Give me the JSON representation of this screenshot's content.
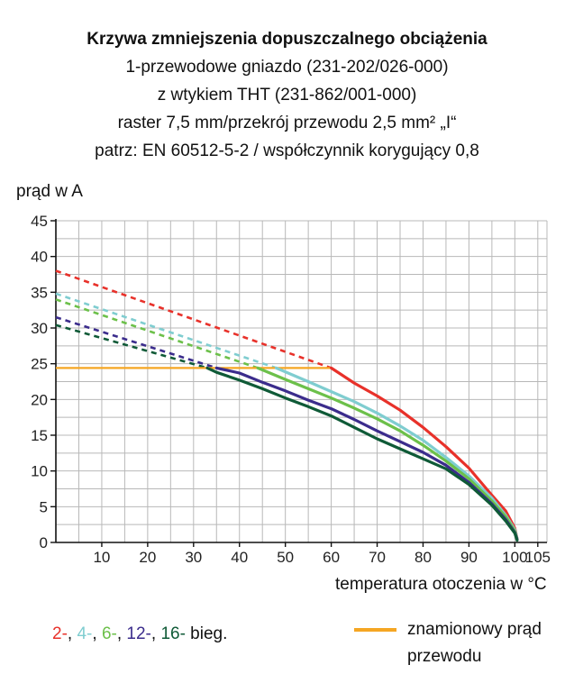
{
  "chart_data": {
    "type": "line",
    "title": "Krzywa zmniejszenia dopuszczalnego obciążenia",
    "subtitle_lines": [
      "1-przewodowe gniazdo (231-202/026-000)",
      "z wtykiem THT (231-862/001-000)",
      "raster 7,5 mm/przekrój przewodu 2,5 mm² „I“",
      "patrz: EN 60512-5-2 / współczynnik korygujący 0,8"
    ],
    "ylabel": "prąd w A",
    "xlabel": "temperatura otoczenia w °C",
    "xlim": [
      0,
      107
    ],
    "ylim": [
      0,
      45
    ],
    "x_ticks": [
      10,
      20,
      30,
      40,
      50,
      60,
      70,
      80,
      90,
      100,
      105
    ],
    "x_tick_labels": [
      "10",
      "20",
      "30",
      "40",
      "50",
      "60",
      "70",
      "80",
      "90",
      "100",
      "105"
    ],
    "y_ticks": [
      0,
      5,
      10,
      15,
      20,
      25,
      30,
      35,
      40,
      45
    ],
    "y_tick_labels": [
      "0",
      "5",
      "10",
      "15",
      "20",
      "25",
      "30",
      "35",
      "40",
      "45"
    ],
    "grid": true,
    "legend_words": [
      "2-",
      "4-",
      "6-",
      "12-",
      "16-"
    ],
    "legend_suffix": " bieg.",
    "legend_separator": ", ",
    "rated_label_lines": [
      "znamionowy prąd",
      "przewodu"
    ],
    "rated_current": 24.4,
    "series": [
      {
        "name": "2-",
        "color": "#e8312a",
        "dashed": {
          "x": [
            0,
            60
          ],
          "y": [
            38.0,
            24.4
          ]
        },
        "solid": {
          "x": [
            60,
            65,
            70,
            75,
            80,
            85,
            90,
            95,
            98,
            100,
            100.5
          ],
          "y": [
            24.4,
            22.3,
            20.5,
            18.5,
            16.1,
            13.4,
            10.4,
            6.6,
            4.4,
            2.0,
            0.5
          ]
        }
      },
      {
        "name": "4-",
        "color": "#7fcdd0",
        "dashed": {
          "x": [
            0,
            48
          ],
          "y": [
            34.8,
            24.4
          ]
        },
        "solid": {
          "x": [
            48,
            55,
            60,
            65,
            70,
            75,
            80,
            85,
            90,
            95,
            98,
            100,
            100.5
          ],
          "y": [
            24.4,
            22.5,
            21.1,
            19.7,
            18.1,
            16.3,
            14.3,
            11.9,
            9.3,
            6.2,
            3.8,
            1.8,
            0.5
          ]
        }
      },
      {
        "name": "6-",
        "color": "#6cc04a",
        "dashed": {
          "x": [
            0,
            44
          ],
          "y": [
            34.0,
            24.4
          ]
        },
        "solid": {
          "x": [
            44,
            50,
            55,
            60,
            65,
            70,
            75,
            80,
            85,
            90,
            95,
            98,
            100,
            100.5
          ],
          "y": [
            24.4,
            22.8,
            21.5,
            20.2,
            18.8,
            17.3,
            15.6,
            13.6,
            11.4,
            8.9,
            5.8,
            3.6,
            1.6,
            0.4
          ]
        }
      },
      {
        "name": "12-",
        "color": "#3b2c8c",
        "dashed": {
          "x": [
            0,
            35
          ],
          "y": [
            31.5,
            24.4
          ]
        },
        "solid": {
          "x": [
            35,
            40,
            45,
            50,
            55,
            60,
            65,
            70,
            75,
            80,
            85,
            90,
            95,
            98,
            100,
            100.5
          ],
          "y": [
            24.4,
            23.7,
            22.4,
            21.2,
            19.9,
            18.7,
            17.2,
            15.6,
            14.1,
            12.6,
            10.8,
            8.4,
            5.4,
            3.2,
            1.4,
            0.4
          ]
        }
      },
      {
        "name": "16-",
        "color": "#0f5a37",
        "dashed": {
          "x": [
            0,
            33
          ],
          "y": [
            30.4,
            24.4
          ]
        },
        "solid": {
          "x": [
            33,
            35,
            40,
            45,
            50,
            55,
            60,
            65,
            70,
            75,
            80,
            85,
            90,
            95,
            98,
            100,
            100.5
          ],
          "y": [
            24.4,
            23.8,
            22.7,
            21.5,
            20.2,
            19.0,
            17.7,
            16.1,
            14.5,
            13.1,
            11.7,
            10.3,
            8.1,
            5.2,
            3.0,
            1.3,
            0.3
          ]
        }
      }
    ],
    "rated_line": {
      "color": "#f5a623",
      "x": [
        0,
        60
      ],
      "y": [
        24.4,
        24.4
      ]
    }
  }
}
